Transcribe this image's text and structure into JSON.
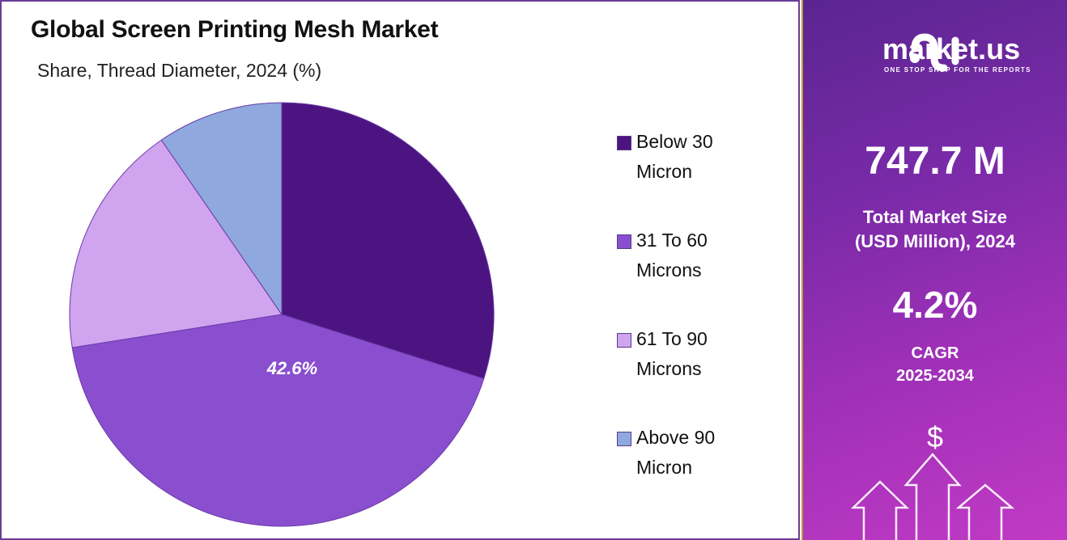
{
  "chart_data": {
    "type": "pie",
    "title": "Global Screen Printing Mesh Market",
    "subtitle": "Share, Thread Diameter, 2024 (%)",
    "categories": [
      "Below 30 Micron",
      "31 To 60 Microns",
      "61 To 90 Microns",
      "Above 90 Micron"
    ],
    "values": [
      29.9,
      42.6,
      17.9,
      9.6
    ],
    "data_labels": [
      "",
      "42.6%",
      "",
      ""
    ],
    "colors": [
      "#4b1480",
      "#8a4fcf",
      "#d0a4ee",
      "#8fa8de"
    ],
    "legend_placement": "right",
    "legend": [
      {
        "line1": "Below 30",
        "line2": "Micron"
      },
      {
        "line1": "31 To 60",
        "line2": "Microns"
      },
      {
        "line1": "61 To 90",
        "line2": "Microns"
      },
      {
        "line1": "Above 90",
        "line2": "Micron"
      }
    ]
  },
  "side_panel": {
    "brand": "market.us",
    "tagline": "ONE STOP SHOP FOR THE REPORTS",
    "market_size": "747.7 M",
    "market_size_label_1": "Total Market Size",
    "market_size_label_2": "(USD Million), 2024",
    "cagr": "4.2%",
    "cagr_label_1": "CAGR",
    "cagr_label_2": "2025-2034",
    "dollar": "$"
  }
}
